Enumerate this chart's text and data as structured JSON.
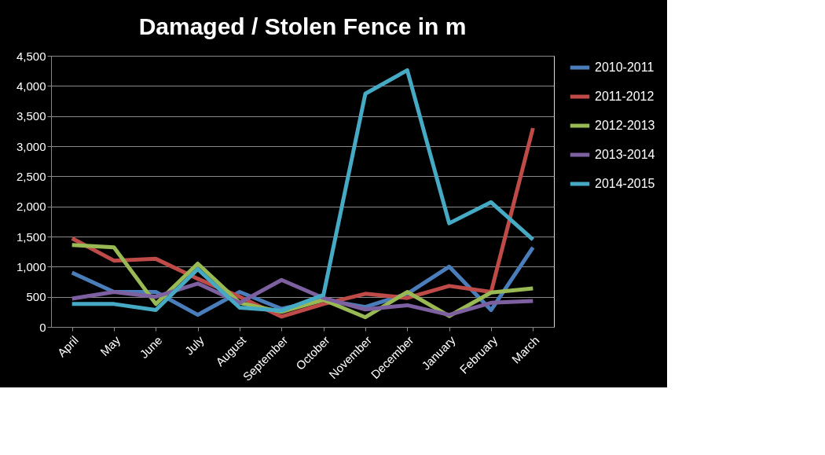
{
  "chart_data": {
    "type": "line",
    "title": "Damaged /  Stolen Fence in m",
    "categories": [
      "April",
      "May",
      "June",
      "July",
      "August",
      "September",
      "October",
      "November",
      "December",
      "January",
      "February",
      "March"
    ],
    "series": [
      {
        "name": "2010-2011",
        "color": "#4a7ebb",
        "values": [
          900,
          580,
          580,
          200,
          580,
          300,
          450,
          330,
          550,
          1000,
          280,
          1320
        ]
      },
      {
        "name": "2011-2012",
        "color": "#be4b48",
        "values": [
          1470,
          1100,
          1130,
          800,
          500,
          170,
          380,
          550,
          480,
          680,
          580,
          3300
        ]
      },
      {
        "name": "2012-2013",
        "color": "#98b954",
        "values": [
          1360,
          1320,
          380,
          1050,
          400,
          250,
          450,
          160,
          580,
          180,
          570,
          640
        ]
      },
      {
        "name": "2013-2014",
        "color": "#7d60a0",
        "values": [
          470,
          580,
          500,
          720,
          400,
          780,
          480,
          290,
          360,
          200,
          400,
          430
        ]
      },
      {
        "name": "2014-2015",
        "color": "#46aac5",
        "values": [
          380,
          380,
          280,
          960,
          320,
          270,
          530,
          3870,
          4260,
          1720,
          2070,
          1450
        ]
      }
    ],
    "ylim": [
      0,
      4500
    ],
    "yticks": [
      0,
      {
        "value": 500,
        "label": "500"
      },
      {
        "value": 1000,
        "label": "1,000"
      },
      {
        "value": 1500,
        "label": "1,500"
      },
      {
        "value": 2000,
        "label": "2,000"
      },
      {
        "value": 2500,
        "label": "2,500"
      },
      {
        "value": 3000,
        "label": "3,000"
      },
      {
        "value": 3500,
        "label": "3,500"
      },
      {
        "value": 4000,
        "label": "4,000"
      },
      {
        "value": 4500,
        "label": "4,500"
      }
    ],
    "grid": "y",
    "legend": "right",
    "marker": "none",
    "line_style": "solid"
  }
}
